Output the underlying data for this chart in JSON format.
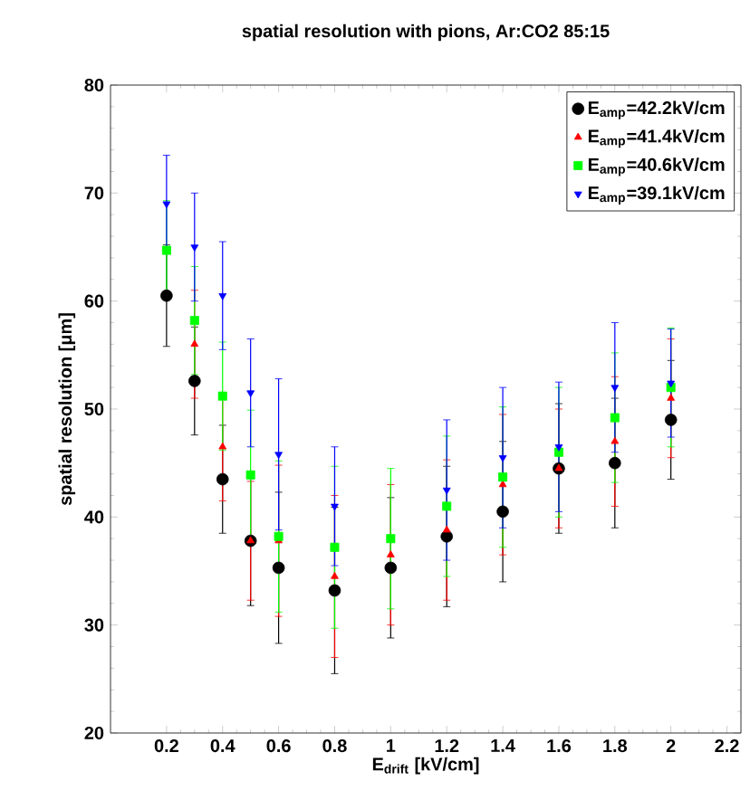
{
  "chart_data": {
    "type": "scatter",
    "title": "spatial resolution with pions, Ar:CO2 85:15",
    "xlabel": "E$_{drift}$ [kV/cm]",
    "ylabel": "spatial resolution [μm]",
    "x": [
      0.2,
      0.3,
      0.4,
      0.5,
      0.6,
      0.8,
      1.0,
      1.2,
      1.4,
      1.6,
      1.8,
      2.0
    ],
    "series": [
      {
        "name": "E$_{amp}$=42.2kV/cm",
        "color": "#000000",
        "marker": "circle",
        "values": [
          60.5,
          52.6,
          43.5,
          37.8,
          35.3,
          33.2,
          35.3,
          38.2,
          40.5,
          44.5,
          45,
          49
        ],
        "errors": [
          4.7,
          5,
          5,
          6,
          7,
          7.7,
          6.5,
          6.5,
          6.5,
          6,
          6,
          5.5
        ]
      },
      {
        "name": "E$_{amp}$=41.4kV/cm",
        "color": "#ff0000",
        "marker": "triangle",
        "values": [
          null,
          56,
          46.5,
          37.8,
          37.8,
          34.5,
          36.5,
          38.8,
          43,
          44.5,
          47,
          51
        ],
        "errors": [
          null,
          5,
          5,
          5.5,
          7,
          7.5,
          6.5,
          6.5,
          6.5,
          5.5,
          6,
          5.5
        ]
      },
      {
        "name": "E$_{amp}$=40.6kV/cm",
        "color": "#00ff00",
        "marker": "square",
        "values": [
          64.7,
          58.2,
          51.2,
          43.9,
          38.2,
          37.2,
          38,
          41,
          43.7,
          46,
          49.2,
          52
        ],
        "errors": [
          4.6,
          5,
          5,
          6,
          7,
          7.5,
          6.5,
          6.5,
          6.5,
          6,
          6,
          5.5
        ]
      },
      {
        "name": "E$_{amp}$=39.1kV/cm",
        "color": "#0000ff",
        "marker": "triangle-down",
        "values": [
          69,
          65,
          60.5,
          51.5,
          45.8,
          41,
          null,
          42.5,
          45.5,
          46.5,
          52,
          52.4
        ],
        "errors": [
          4.5,
          5,
          5,
          5,
          7,
          5.5,
          null,
          6.5,
          6.5,
          6,
          6,
          5
        ]
      }
    ],
    "xlim": [
      0,
      2.25
    ],
    "ylim": [
      20,
      80
    ],
    "xticks": [
      0.2,
      0.4,
      0.6,
      0.8,
      1,
      1.2,
      1.4,
      1.6,
      1.8,
      2,
      2.2
    ],
    "yticks": [
      20,
      30,
      40,
      50,
      60,
      70,
      80
    ],
    "legend": "top right",
    "grid": false
  }
}
